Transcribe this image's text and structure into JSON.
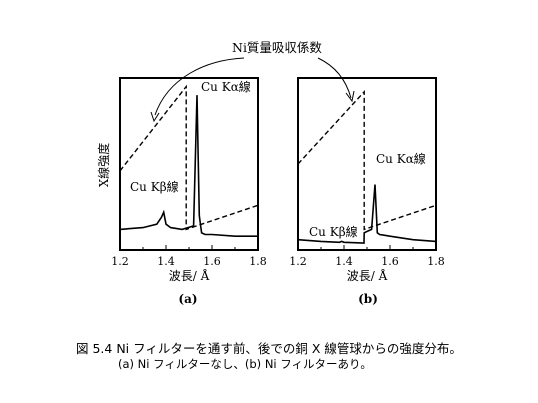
{
  "annotation_top": "Ni質量吸収係数",
  "caption": {
    "line1": "図 5.4 Ni フィルターを通す前、後での銅 X 線管球からの強度分布。",
    "line2": "(a) Ni フィルターなし、(b) Ni フィルターあり。"
  },
  "chart_data": [
    {
      "type": "line",
      "panel_label": "(a)",
      "xlabel": "波長/ Å",
      "ylabel": "X線強度",
      "xlim": [
        1.2,
        1.8
      ],
      "xticks": [
        "1.2",
        "1.4",
        "1.6",
        "1.8"
      ],
      "y_units": "relative",
      "ylim": [
        0,
        1
      ],
      "grid": false,
      "annotations": [
        "Cu Kα線",
        "Cu Kβ線"
      ],
      "series": [
        {
          "role": "intensity",
          "style": "solid",
          "x": [
            1.2,
            1.3,
            1.36,
            1.38,
            1.39,
            1.4,
            1.42,
            1.47,
            1.52,
            1.535,
            1.545,
            1.555,
            1.57,
            1.6,
            1.7,
            1.8
          ],
          "y": [
            0.12,
            0.13,
            0.15,
            0.19,
            0.22,
            0.15,
            0.13,
            0.12,
            0.14,
            0.9,
            0.2,
            0.1,
            0.09,
            0.09,
            0.08,
            0.08
          ]
        },
        {
          "role": "absorption",
          "style": "dashed",
          "x": [
            1.2,
            1.488,
            1.488,
            1.8
          ],
          "y": [
            0.46,
            0.95,
            0.12,
            0.26
          ]
        }
      ]
    },
    {
      "type": "line",
      "panel_label": "(b)",
      "xlabel": "波長/ Å",
      "xlim": [
        1.2,
        1.8
      ],
      "xticks": [
        "1.2",
        "1.4",
        "1.6",
        "1.8"
      ],
      "y_units": "relative",
      "ylim": [
        0,
        1
      ],
      "grid": false,
      "annotations": [
        "Cu Kα線",
        "Cu Kβ線"
      ],
      "series": [
        {
          "role": "intensity",
          "style": "solid",
          "x": [
            1.2,
            1.3,
            1.38,
            1.39,
            1.4,
            1.487,
            1.488,
            1.52,
            1.535,
            1.545,
            1.555,
            1.6,
            1.7,
            1.8
          ],
          "y": [
            0.06,
            0.05,
            0.045,
            0.05,
            0.045,
            0.04,
            0.1,
            0.12,
            0.38,
            0.1,
            0.09,
            0.08,
            0.06,
            0.05
          ]
        },
        {
          "role": "absorption",
          "style": "dashed",
          "x": [
            1.2,
            1.488,
            1.488,
            1.8
          ],
          "y": [
            0.5,
            0.92,
            0.12,
            0.26
          ]
        }
      ]
    }
  ]
}
